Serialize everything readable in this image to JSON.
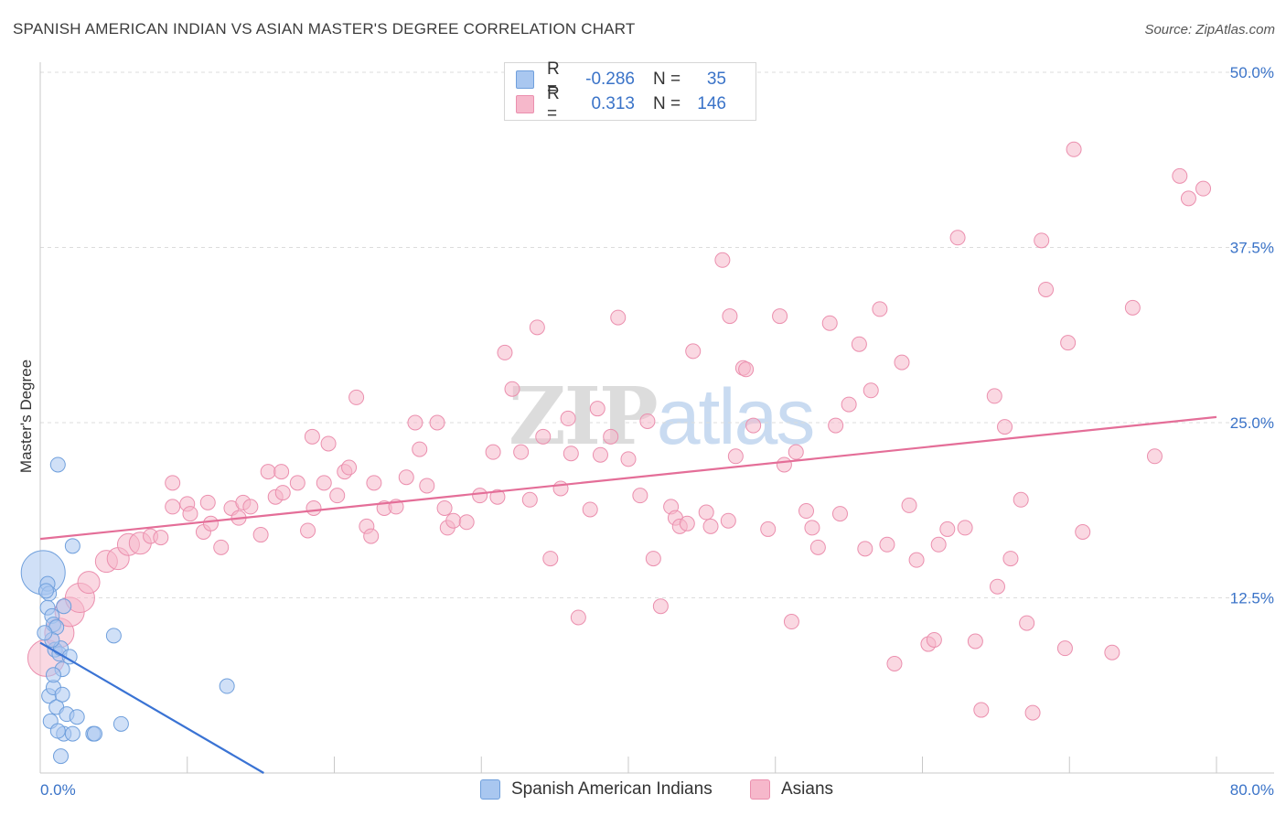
{
  "title": "SPANISH AMERICAN INDIAN VS ASIAN MASTER'S DEGREE CORRELATION CHART",
  "source": "Source: ZipAtlas.com",
  "watermark": {
    "part1": "ZIP",
    "part2": "atlas"
  },
  "legend_top": [
    {
      "r_label": "R =",
      "r_value": "-0.286",
      "n_label": "N =",
      "n_value": "35"
    },
    {
      "r_label": "R =",
      "r_value": "0.313",
      "n_label": "N =",
      "n_value": "146"
    }
  ],
  "legend_bottom": [
    "Spanish American Indians",
    "Asians"
  ],
  "colors": {
    "blue_fill": "#a9c7f0",
    "blue_stroke": "#6f9fdc",
    "blue_line": "#3a73d4",
    "pink_fill": "#f6b8cb",
    "pink_stroke": "#eb8fae",
    "pink_line": "#e46e98",
    "axis_label": "#3a73c8",
    "grid": "#dcdcdc"
  },
  "chart_data": {
    "type": "scatter",
    "title": "SPANISH AMERICAN INDIAN VS ASIAN MASTER'S DEGREE CORRELATION CHART",
    "xlabel": "",
    "ylabel": "Master's Degree",
    "xlim": [
      0,
      80
    ],
    "ylim": [
      0,
      50
    ],
    "x_tick_labels": [
      "0.0%",
      "80.0%"
    ],
    "y_ticks": [
      12.5,
      25.0,
      37.5,
      50.0
    ],
    "y_tick_labels": [
      "12.5%",
      "25.0%",
      "37.5%",
      "50.0%"
    ],
    "series": [
      {
        "name": "Spanish American Indians",
        "R": -0.286,
        "N": 35,
        "trend": {
          "x": [
            0,
            15.2
          ],
          "y": [
            9.3,
            0
          ]
        },
        "points": [
          {
            "x": 0.2,
            "y": 14.3,
            "s": 3
          },
          {
            "x": 0.5,
            "y": 13.5,
            "s": 1
          },
          {
            "x": 0.6,
            "y": 12.8,
            "s": 1
          },
          {
            "x": 0.5,
            "y": 11.8,
            "s": 1
          },
          {
            "x": 0.8,
            "y": 11.2,
            "s": 1
          },
          {
            "x": 0.9,
            "y": 10.6,
            "s": 1
          },
          {
            "x": 1.1,
            "y": 10.4,
            "s": 1
          },
          {
            "x": 1.0,
            "y": 8.8,
            "s": 1
          },
          {
            "x": 1.3,
            "y": 8.5,
            "s": 1
          },
          {
            "x": 1.4,
            "y": 8.9,
            "s": 1
          },
          {
            "x": 1.5,
            "y": 7.4,
            "s": 1
          },
          {
            "x": 0.6,
            "y": 5.5,
            "s": 1
          },
          {
            "x": 0.9,
            "y": 6.1,
            "s": 1
          },
          {
            "x": 1.1,
            "y": 4.7,
            "s": 1
          },
          {
            "x": 1.5,
            "y": 5.6,
            "s": 1
          },
          {
            "x": 1.8,
            "y": 4.2,
            "s": 1
          },
          {
            "x": 0.7,
            "y": 3.7,
            "s": 1
          },
          {
            "x": 1.6,
            "y": 2.8,
            "s": 1
          },
          {
            "x": 2.2,
            "y": 2.8,
            "s": 1
          },
          {
            "x": 1.4,
            "y": 1.2,
            "s": 1
          },
          {
            "x": 1.2,
            "y": 22.0,
            "s": 1
          },
          {
            "x": 2.2,
            "y": 16.2,
            "s": 1
          },
          {
            "x": 5.0,
            "y": 9.8,
            "s": 1
          },
          {
            "x": 3.6,
            "y": 2.8,
            "s": 1
          },
          {
            "x": 3.7,
            "y": 2.8,
            "s": 1
          },
          {
            "x": 5.5,
            "y": 3.5,
            "s": 1
          },
          {
            "x": 12.7,
            "y": 6.2,
            "s": 1
          },
          {
            "x": 0.4,
            "y": 13.0,
            "s": 1
          },
          {
            "x": 0.8,
            "y": 9.5,
            "s": 1
          },
          {
            "x": 1.6,
            "y": 11.9,
            "s": 1
          },
          {
            "x": 2.0,
            "y": 8.3,
            "s": 1
          },
          {
            "x": 0.9,
            "y": 7.0,
            "s": 1
          },
          {
            "x": 2.5,
            "y": 4.0,
            "s": 1
          },
          {
            "x": 1.2,
            "y": 3.0,
            "s": 1
          },
          {
            "x": 0.3,
            "y": 10.0,
            "s": 1
          }
        ]
      },
      {
        "name": "Asians",
        "R": 0.313,
        "N": 146,
        "trend": {
          "x": [
            0,
            80
          ],
          "y": [
            16.7,
            25.4
          ]
        },
        "points": [
          {
            "x": 0.4,
            "y": 8.2,
            "s": 2.5
          },
          {
            "x": 1.3,
            "y": 10.0,
            "s": 2
          },
          {
            "x": 2.0,
            "y": 11.5,
            "s": 2
          },
          {
            "x": 2.7,
            "y": 12.5,
            "s": 2
          },
          {
            "x": 3.3,
            "y": 13.6,
            "s": 1.5
          },
          {
            "x": 4.5,
            "y": 15.1,
            "s": 1.5
          },
          {
            "x": 5.3,
            "y": 15.3,
            "s": 1.5
          },
          {
            "x": 6.0,
            "y": 16.3,
            "s": 1.5
          },
          {
            "x": 6.8,
            "y": 16.4,
            "s": 1.5
          },
          {
            "x": 7.5,
            "y": 16.9,
            "s": 1
          },
          {
            "x": 8.2,
            "y": 16.8,
            "s": 1
          },
          {
            "x": 9.0,
            "y": 19.0,
            "s": 1
          },
          {
            "x": 9.0,
            "y": 20.7,
            "s": 1
          },
          {
            "x": 10.0,
            "y": 19.2,
            "s": 1
          },
          {
            "x": 11.1,
            "y": 17.2,
            "s": 1
          },
          {
            "x": 11.6,
            "y": 17.8,
            "s": 1
          },
          {
            "x": 10.2,
            "y": 18.5,
            "s": 1
          },
          {
            "x": 11.4,
            "y": 19.3,
            "s": 1
          },
          {
            "x": 12.3,
            "y": 16.1,
            "s": 1
          },
          {
            "x": 13.0,
            "y": 18.9,
            "s": 1
          },
          {
            "x": 13.5,
            "y": 18.2,
            "s": 1
          },
          {
            "x": 13.8,
            "y": 19.3,
            "s": 1
          },
          {
            "x": 14.3,
            "y": 19.0,
            "s": 1
          },
          {
            "x": 15.0,
            "y": 17.0,
            "s": 1
          },
          {
            "x": 15.5,
            "y": 21.5,
            "s": 1
          },
          {
            "x": 16.0,
            "y": 19.7,
            "s": 1
          },
          {
            "x": 16.4,
            "y": 21.5,
            "s": 1
          },
          {
            "x": 16.5,
            "y": 20.0,
            "s": 1
          },
          {
            "x": 17.5,
            "y": 20.7,
            "s": 1
          },
          {
            "x": 18.2,
            "y": 17.3,
            "s": 1
          },
          {
            "x": 18.6,
            "y": 18.9,
            "s": 1
          },
          {
            "x": 18.5,
            "y": 24.0,
            "s": 1
          },
          {
            "x": 19.3,
            "y": 20.7,
            "s": 1
          },
          {
            "x": 19.6,
            "y": 23.5,
            "s": 1
          },
          {
            "x": 20.2,
            "y": 19.8,
            "s": 1
          },
          {
            "x": 20.7,
            "y": 21.5,
            "s": 1
          },
          {
            "x": 21.0,
            "y": 21.8,
            "s": 1
          },
          {
            "x": 21.5,
            "y": 26.8,
            "s": 1
          },
          {
            "x": 22.2,
            "y": 17.6,
            "s": 1
          },
          {
            "x": 22.5,
            "y": 16.9,
            "s": 1
          },
          {
            "x": 22.7,
            "y": 20.7,
            "s": 1
          },
          {
            "x": 23.4,
            "y": 18.9,
            "s": 1
          },
          {
            "x": 24.2,
            "y": 19.0,
            "s": 1
          },
          {
            "x": 24.9,
            "y": 21.1,
            "s": 1
          },
          {
            "x": 25.5,
            "y": 25.0,
            "s": 1
          },
          {
            "x": 25.8,
            "y": 23.1,
            "s": 1
          },
          {
            "x": 26.3,
            "y": 20.5,
            "s": 1
          },
          {
            "x": 27.0,
            "y": 25.0,
            "s": 1
          },
          {
            "x": 27.5,
            "y": 18.9,
            "s": 1
          },
          {
            "x": 27.7,
            "y": 17.5,
            "s": 1
          },
          {
            "x": 28.1,
            "y": 18.0,
            "s": 1
          },
          {
            "x": 29.0,
            "y": 17.9,
            "s": 1
          },
          {
            "x": 29.9,
            "y": 19.8,
            "s": 1
          },
          {
            "x": 30.8,
            "y": 22.9,
            "s": 1
          },
          {
            "x": 31.1,
            "y": 19.7,
            "s": 1
          },
          {
            "x": 31.6,
            "y": 30.0,
            "s": 1
          },
          {
            "x": 32.1,
            "y": 27.4,
            "s": 1
          },
          {
            "x": 32.7,
            "y": 22.9,
            "s": 1
          },
          {
            "x": 33.3,
            "y": 19.5,
            "s": 1
          },
          {
            "x": 33.8,
            "y": 31.8,
            "s": 1
          },
          {
            "x": 34.2,
            "y": 24.0,
            "s": 1
          },
          {
            "x": 34.7,
            "y": 15.3,
            "s": 1
          },
          {
            "x": 35.4,
            "y": 20.3,
            "s": 1
          },
          {
            "x": 35.9,
            "y": 25.3,
            "s": 1
          },
          {
            "x": 36.1,
            "y": 22.8,
            "s": 1
          },
          {
            "x": 36.6,
            "y": 11.1,
            "s": 1
          },
          {
            "x": 37.4,
            "y": 18.8,
            "s": 1
          },
          {
            "x": 37.9,
            "y": 26.0,
            "s": 1
          },
          {
            "x": 38.1,
            "y": 22.7,
            "s": 1
          },
          {
            "x": 38.8,
            "y": 24.0,
            "s": 1
          },
          {
            "x": 39.3,
            "y": 32.5,
            "s": 1
          },
          {
            "x": 40.0,
            "y": 22.4,
            "s": 1
          },
          {
            "x": 40.8,
            "y": 19.8,
            "s": 1
          },
          {
            "x": 41.3,
            "y": 25.1,
            "s": 1
          },
          {
            "x": 41.7,
            "y": 15.3,
            "s": 1
          },
          {
            "x": 42.2,
            "y": 11.9,
            "s": 1
          },
          {
            "x": 42.9,
            "y": 19.0,
            "s": 1
          },
          {
            "x": 43.2,
            "y": 18.2,
            "s": 1
          },
          {
            "x": 43.5,
            "y": 17.6,
            "s": 1
          },
          {
            "x": 44.0,
            "y": 17.8,
            "s": 1
          },
          {
            "x": 44.4,
            "y": 30.1,
            "s": 1
          },
          {
            "x": 45.3,
            "y": 18.6,
            "s": 1
          },
          {
            "x": 45.6,
            "y": 17.6,
            "s": 1
          },
          {
            "x": 46.4,
            "y": 36.6,
            "s": 1
          },
          {
            "x": 46.8,
            "y": 18.0,
            "s": 1
          },
          {
            "x": 46.9,
            "y": 32.6,
            "s": 1
          },
          {
            "x": 47.3,
            "y": 22.6,
            "s": 1
          },
          {
            "x": 47.8,
            "y": 28.9,
            "s": 1
          },
          {
            "x": 48.0,
            "y": 28.8,
            "s": 1
          },
          {
            "x": 48.5,
            "y": 24.8,
            "s": 1
          },
          {
            "x": 49.5,
            "y": 17.4,
            "s": 1
          },
          {
            "x": 50.3,
            "y": 32.6,
            "s": 1
          },
          {
            "x": 50.6,
            "y": 22.0,
            "s": 1
          },
          {
            "x": 51.1,
            "y": 10.8,
            "s": 1
          },
          {
            "x": 51.4,
            "y": 22.9,
            "s": 1
          },
          {
            "x": 52.1,
            "y": 18.7,
            "s": 1
          },
          {
            "x": 52.5,
            "y": 17.5,
            "s": 1
          },
          {
            "x": 52.9,
            "y": 16.1,
            "s": 1
          },
          {
            "x": 53.7,
            "y": 32.1,
            "s": 1
          },
          {
            "x": 54.1,
            "y": 24.8,
            "s": 1
          },
          {
            "x": 54.4,
            "y": 18.5,
            "s": 1
          },
          {
            "x": 55.0,
            "y": 26.3,
            "s": 1
          },
          {
            "x": 55.7,
            "y": 30.6,
            "s": 1
          },
          {
            "x": 56.1,
            "y": 16.0,
            "s": 1
          },
          {
            "x": 56.5,
            "y": 27.3,
            "s": 1
          },
          {
            "x": 57.1,
            "y": 33.1,
            "s": 1
          },
          {
            "x": 57.6,
            "y": 16.3,
            "s": 1
          },
          {
            "x": 58.1,
            "y": 7.8,
            "s": 1
          },
          {
            "x": 58.6,
            "y": 29.3,
            "s": 1
          },
          {
            "x": 59.1,
            "y": 19.1,
            "s": 1
          },
          {
            "x": 59.6,
            "y": 15.2,
            "s": 1
          },
          {
            "x": 60.4,
            "y": 9.2,
            "s": 1
          },
          {
            "x": 60.8,
            "y": 9.5,
            "s": 1
          },
          {
            "x": 61.1,
            "y": 16.3,
            "s": 1
          },
          {
            "x": 61.7,
            "y": 17.4,
            "s": 1
          },
          {
            "x": 62.4,
            "y": 38.2,
            "s": 1
          },
          {
            "x": 62.9,
            "y": 17.5,
            "s": 1
          },
          {
            "x": 63.6,
            "y": 9.4,
            "s": 1
          },
          {
            "x": 64.0,
            "y": 4.5,
            "s": 1
          },
          {
            "x": 64.9,
            "y": 26.9,
            "s": 1
          },
          {
            "x": 65.1,
            "y": 13.3,
            "s": 1
          },
          {
            "x": 65.6,
            "y": 24.7,
            "s": 1
          },
          {
            "x": 66.0,
            "y": 15.3,
            "s": 1
          },
          {
            "x": 66.7,
            "y": 19.5,
            "s": 1
          },
          {
            "x": 67.1,
            "y": 10.7,
            "s": 1
          },
          {
            "x": 67.5,
            "y": 4.3,
            "s": 1
          },
          {
            "x": 68.1,
            "y": 38.0,
            "s": 1
          },
          {
            "x": 68.4,
            "y": 34.5,
            "s": 1
          },
          {
            "x": 69.7,
            "y": 8.9,
            "s": 1
          },
          {
            "x": 69.9,
            "y": 30.7,
            "s": 1
          },
          {
            "x": 70.3,
            "y": 44.5,
            "s": 1
          },
          {
            "x": 70.9,
            "y": 17.2,
            "s": 1
          },
          {
            "x": 72.9,
            "y": 8.6,
            "s": 1
          },
          {
            "x": 74.3,
            "y": 33.2,
            "s": 1
          },
          {
            "x": 75.8,
            "y": 22.6,
            "s": 1
          },
          {
            "x": 77.5,
            "y": 42.6,
            "s": 1
          },
          {
            "x": 78.1,
            "y": 41.0,
            "s": 1
          },
          {
            "x": 79.1,
            "y": 41.7,
            "s": 1
          }
        ]
      }
    ]
  }
}
